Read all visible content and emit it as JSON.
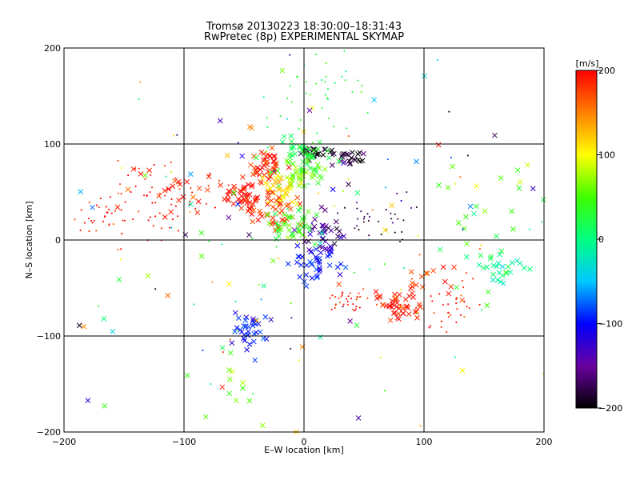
{
  "title": "Tromsø 20130223 18:30:00–18:31:43",
  "subtitle": "RwPretec (8p) EXPERIMENTAL SKYMAP",
  "chart_data": {
    "type": "scatter",
    "xlabel": "E–W location [km]",
    "ylabel": "N–S location [km]",
    "xlim": [
      -200,
      200
    ],
    "ylim": [
      -200,
      200
    ],
    "xticks": [
      -200,
      -100,
      0,
      100,
      200
    ],
    "yticks": [
      -200,
      -100,
      0,
      100,
      200
    ],
    "grid_lines_x": [
      -100,
      0,
      100
    ],
    "grid_lines_y": [
      -100,
      0,
      100
    ],
    "colorbar": {
      "label": "[m/s]",
      "range": [
        -200,
        200
      ],
      "ticks": [
        -200,
        -100,
        0,
        100,
        200
      ],
      "palette": [
        "#000000",
        "#6a00a0",
        "#0000ff",
        "#00c8ff",
        "#00ff80",
        "#40ff00",
        "#ffff00",
        "#ff8000",
        "#ff0000"
      ]
    },
    "marker_legend": "x = large echo, dot = small echo",
    "clusters": [
      {
        "name": "north-center-black",
        "cx": 8,
        "cy": 92,
        "sx": 6,
        "sy": 3,
        "n": 25,
        "v": -190,
        "marker": "x"
      },
      {
        "name": "north-east-black",
        "cx": 38,
        "cy": 85,
        "sx": 10,
        "sy": 5,
        "n": 25,
        "v": -185,
        "marker": "x"
      },
      {
        "name": "north-center-cyan",
        "cx": 0,
        "cy": 88,
        "sx": 10,
        "sy": 8,
        "n": 40,
        "v": 20,
        "marker": "x"
      },
      {
        "name": "north-green",
        "cx": -5,
        "cy": 70,
        "sx": 10,
        "sy": 8,
        "n": 40,
        "v": 60,
        "marker": "x"
      },
      {
        "name": "north-red",
        "cx": -30,
        "cy": 78,
        "sx": 8,
        "sy": 8,
        "n": 40,
        "v": 190,
        "marker": "x"
      },
      {
        "name": "center-yellow",
        "cx": -20,
        "cy": 55,
        "sx": 8,
        "sy": 10,
        "n": 30,
        "v": 110,
        "marker": "x"
      },
      {
        "name": "west-red-big",
        "cx": -50,
        "cy": 45,
        "sx": 8,
        "sy": 7,
        "n": 45,
        "v": 195,
        "marker": "x"
      },
      {
        "name": "center-red",
        "cx": -25,
        "cy": 30,
        "sx": 10,
        "sy": 8,
        "n": 40,
        "v": 180,
        "marker": "x"
      },
      {
        "name": "far-west-red",
        "cx": -120,
        "cy": 40,
        "sx": 25,
        "sy": 20,
        "n": 60,
        "v": 190,
        "marker": "dot"
      },
      {
        "name": "far-west-red-x",
        "cx": -100,
        "cy": 55,
        "sx": 25,
        "sy": 15,
        "n": 25,
        "v": 185,
        "marker": "x"
      },
      {
        "name": "west-edge-red",
        "cx": -160,
        "cy": 20,
        "sx": 20,
        "sy": 15,
        "n": 30,
        "v": 195,
        "marker": "dot"
      },
      {
        "name": "center-green-low",
        "cx": -10,
        "cy": 15,
        "sx": 10,
        "sy": 10,
        "n": 40,
        "v": 40,
        "marker": "x"
      },
      {
        "name": "center-blue",
        "cx": 8,
        "cy": -20,
        "sx": 8,
        "sy": 12,
        "n": 45,
        "v": -95,
        "marker": "x"
      },
      {
        "name": "center-purple",
        "cx": 15,
        "cy": 5,
        "sx": 10,
        "sy": 10,
        "n": 30,
        "v": -150,
        "marker": "x"
      },
      {
        "name": "east-dark",
        "cx": 60,
        "cy": 20,
        "sx": 20,
        "sy": 12,
        "n": 35,
        "v": -175,
        "marker": "dot"
      },
      {
        "name": "southeast-red-1",
        "cx": 35,
        "cy": -60,
        "sx": 10,
        "sy": 8,
        "n": 35,
        "v": 190,
        "marker": "dot"
      },
      {
        "name": "southeast-red-2",
        "cx": 80,
        "cy": -70,
        "sx": 10,
        "sy": 8,
        "n": 35,
        "v": 195,
        "marker": "x"
      },
      {
        "name": "southeast-red-3",
        "cx": 120,
        "cy": -70,
        "sx": 15,
        "sy": 12,
        "n": 35,
        "v": 190,
        "marker": "dot"
      },
      {
        "name": "southeast-red-x",
        "cx": 100,
        "cy": -50,
        "sx": 25,
        "sy": 15,
        "n": 25,
        "v": 180,
        "marker": "x"
      },
      {
        "name": "east-cyan",
        "cx": 165,
        "cy": -30,
        "sx": 10,
        "sy": 8,
        "n": 25,
        "v": -10,
        "marker": "x"
      },
      {
        "name": "east-scatter",
        "cx": 150,
        "cy": 30,
        "sx": 30,
        "sy": 30,
        "n": 25,
        "v": 40,
        "marker": "x"
      },
      {
        "name": "southwest-blue",
        "cx": -45,
        "cy": -95,
        "sx": 7,
        "sy": 12,
        "n": 35,
        "v": -100,
        "marker": "x"
      },
      {
        "name": "south-green",
        "cx": -55,
        "cy": -150,
        "sx": 15,
        "sy": 20,
        "n": 12,
        "v": 60,
        "marker": "x"
      },
      {
        "name": "north-spray",
        "cx": 15,
        "cy": 150,
        "sx": 25,
        "sy": 30,
        "n": 45,
        "v": 30,
        "marker": "dot"
      },
      {
        "name": "scatter-all",
        "cx": 0,
        "cy": 0,
        "sx": 110,
        "sy": 100,
        "n": 180,
        "v": 0,
        "vs": 200,
        "marker": "mix"
      }
    ]
  }
}
